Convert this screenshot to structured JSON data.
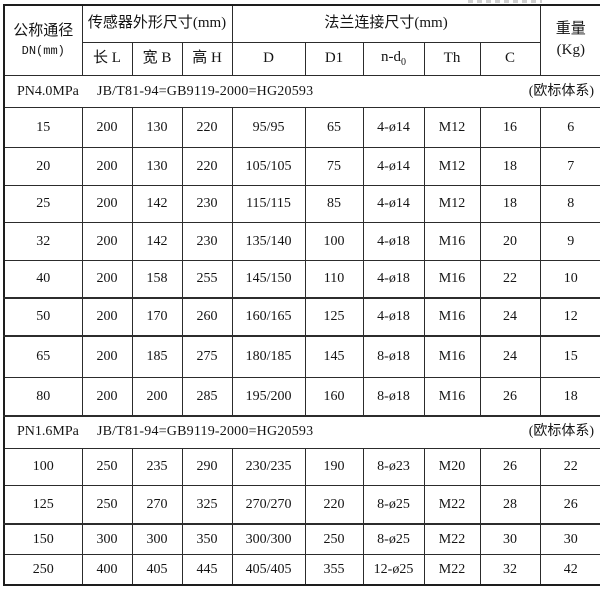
{
  "table": {
    "headers": {
      "nominal_line1": "公称通径",
      "nominal_line2": "DN(mm)",
      "sensor_dims": "传感器外形尺寸(mm)",
      "flange_dims": "法兰连接尺寸(mm)",
      "weight_line1": "重量",
      "weight_line2": "(Kg)",
      "length": "长 L",
      "width": "宽 B",
      "height": "高 H",
      "d": "D",
      "d1": "D1",
      "nd0_base": "n-d",
      "nd0_sub": "0",
      "th": "Th",
      "c": "C"
    },
    "sections": [
      {
        "label": "PN4.0MPa",
        "standard": "JB/T81-94=GB9119-2000=HG20593",
        "note": "(欧标体系)",
        "rows": [
          [
            "15",
            "200",
            "130",
            "220",
            "95/95",
            "65",
            "4-ø14",
            "M12",
            "16",
            "6"
          ],
          [
            "20",
            "200",
            "130",
            "220",
            "105/105",
            "75",
            "4-ø14",
            "M12",
            "18",
            "7"
          ],
          [
            "25",
            "200",
            "142",
            "230",
            "115/115",
            "85",
            "4-ø14",
            "M12",
            "18",
            "8"
          ],
          [
            "32",
            "200",
            "142",
            "230",
            "135/140",
            "100",
            "4-ø18",
            "M16",
            "20",
            "9"
          ],
          [
            "40",
            "200",
            "158",
            "255",
            "145/150",
            "110",
            "4-ø18",
            "M16",
            "22",
            "10"
          ],
          [
            "50",
            "200",
            "170",
            "260",
            "160/165",
            "125",
            "4-ø18",
            "M16",
            "24",
            "12"
          ],
          [
            "65",
            "200",
            "185",
            "275",
            "180/185",
            "145",
            "8-ø18",
            "M16",
            "24",
            "15"
          ],
          [
            "80",
            "200",
            "200",
            "285",
            "195/200",
            "160",
            "8-ø18",
            "M16",
            "26",
            "18"
          ]
        ]
      },
      {
        "label": "PN1.6MPa",
        "standard": "JB/T81-94=GB9119-2000=HG20593",
        "note": "(欧标体系)",
        "rows": [
          [
            "100",
            "250",
            "235",
            "290",
            "230/235",
            "190",
            "8-ø23",
            "M20",
            "26",
            "22"
          ],
          [
            "125",
            "250",
            "270",
            "325",
            "270/270",
            "220",
            "8-ø25",
            "M22",
            "28",
            "26"
          ],
          [
            "150",
            "300",
            "300",
            "350",
            "300/300",
            "250",
            "8-ø25",
            "M22",
            "30",
            "30"
          ],
          [
            "250",
            "400",
            "405",
            "445",
            "405/405",
            "355",
            "12-ø25",
            "M22",
            "32",
            "42"
          ]
        ]
      }
    ]
  }
}
